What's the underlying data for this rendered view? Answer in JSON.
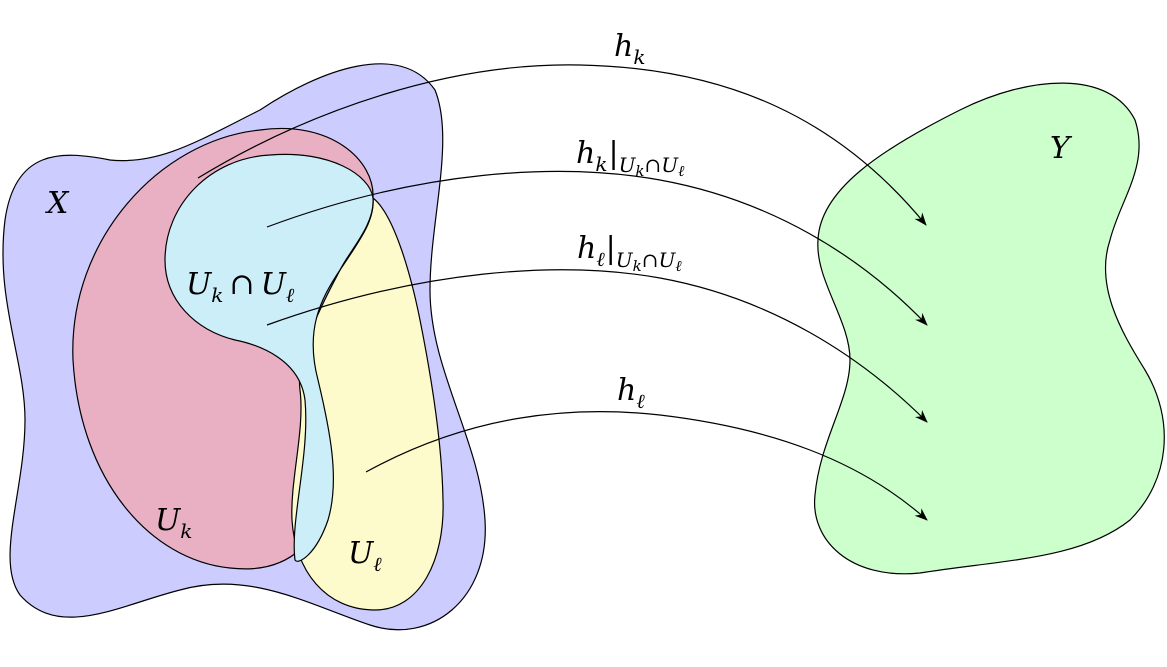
{
  "colors": {
    "X": "#ccccff",
    "U_k": "#e8b0c2",
    "intersection": "#cceef8",
    "U_l": "#fdfacc",
    "Y": "#ccffcc",
    "stroke": "#000000"
  },
  "regions": {
    "X": "X",
    "Y": "Y",
    "U_k": {
      "base": "U",
      "sub": "k"
    },
    "U_l": {
      "base": "U",
      "sub": "ℓ"
    },
    "intersection": {
      "a": "U",
      "a_sub": "k",
      "op": "∩",
      "b": "U",
      "b_sub": "ℓ"
    }
  },
  "maps": {
    "h_k": {
      "base": "h",
      "sub": "k"
    },
    "h_k_restricted": {
      "base": "h",
      "sub": "k",
      "bar": "|",
      "a": "U",
      "a_sub": "k",
      "op": "∩",
      "b": "U",
      "b_sub": "ℓ"
    },
    "h_l_restricted": {
      "base": "h",
      "sub": "ℓ",
      "bar": "|",
      "a": "U",
      "a_sub": "k",
      "op": "∩",
      "b": "U",
      "b_sub": "ℓ"
    },
    "h_l": {
      "base": "h",
      "sub": "ℓ"
    }
  }
}
